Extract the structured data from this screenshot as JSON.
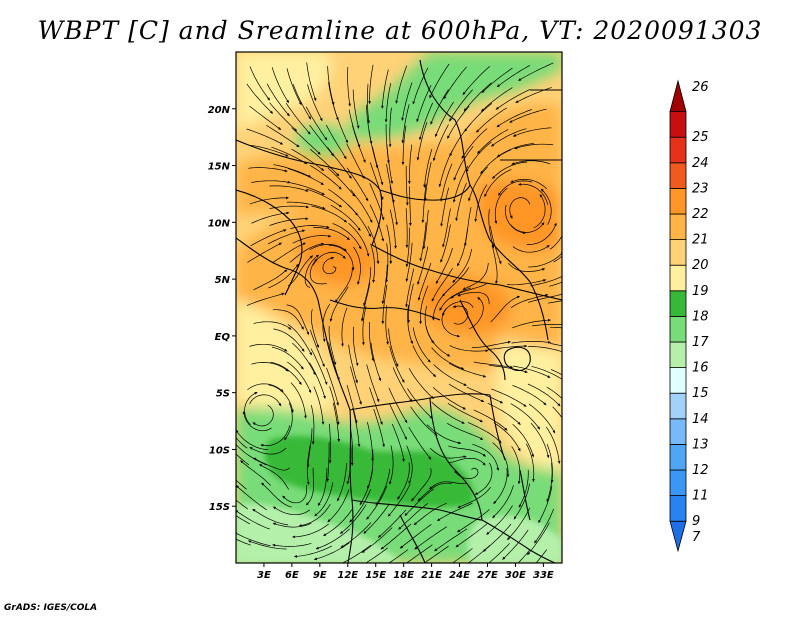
{
  "title": "WBPT [C] and Sreamline at 600hPa, VT: 2020091303",
  "credit": "GrADS: IGES/COLA",
  "map": {
    "lat_range": [
      -20,
      25
    ],
    "lon_range": [
      0,
      35
    ],
    "lat_ticks": [
      {
        "value": 20,
        "label": "20N"
      },
      {
        "value": 15,
        "label": "15N"
      },
      {
        "value": 10,
        "label": "10N"
      },
      {
        "value": 5,
        "label": "5N"
      },
      {
        "value": 0,
        "label": "EQ"
      },
      {
        "value": -5,
        "label": "5S"
      },
      {
        "value": -10,
        "label": "10S"
      },
      {
        "value": -15,
        "label": "15S"
      }
    ],
    "lon_ticks": [
      {
        "value": 3,
        "label": "3E"
      },
      {
        "value": 6,
        "label": "6E"
      },
      {
        "value": 9,
        "label": "9E"
      },
      {
        "value": 12,
        "label": "12E"
      },
      {
        "value": 15,
        "label": "15E"
      },
      {
        "value": 18,
        "label": "18E"
      },
      {
        "value": 21,
        "label": "21E"
      },
      {
        "value": 24,
        "label": "24E"
      },
      {
        "value": 27,
        "label": "27E"
      },
      {
        "value": 30,
        "label": "30E"
      },
      {
        "value": 33,
        "label": "33E"
      }
    ]
  },
  "colorbar": {
    "levels": [
      "7",
      "9",
      "11",
      "12",
      "13",
      "14",
      "15",
      "16",
      "17",
      "18",
      "19",
      "20",
      "21",
      "22",
      "23",
      "24",
      "25",
      "26"
    ],
    "colors": [
      "#1e6ee6",
      "#2882f0",
      "#3c96f5",
      "#50a5f5",
      "#78b9fa",
      "#a0d2fa",
      "#e1ffff",
      "#b4f0aa",
      "#78dc78",
      "#37b937",
      "#fff0a0",
      "#ffd278",
      "#ffb446",
      "#ff9628",
      "#f05a1e",
      "#e63219",
      "#c80f0f",
      "#a00000"
    ]
  },
  "field_colors": {
    "green_light": "#b4f0aa",
    "green_mid": "#78dc78",
    "green_dark": "#37b937",
    "yellow": "#fff0a0",
    "yellow_orange": "#ffd278",
    "orange": "#ffb446",
    "dark_orange": "#ff9628"
  }
}
